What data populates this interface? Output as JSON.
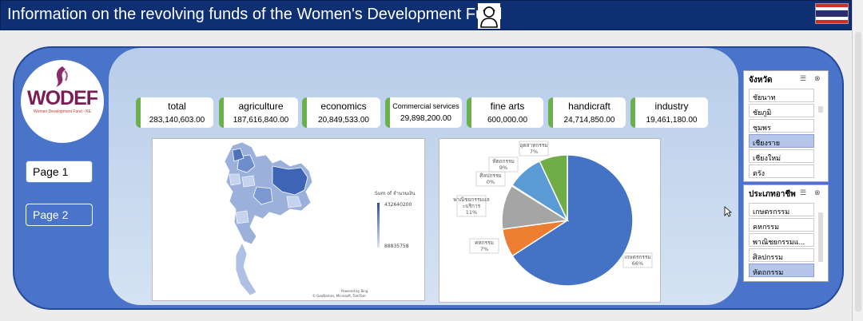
{
  "header": {
    "title": "Information on the revolving funds of the Women's Development Fund"
  },
  "logo": {
    "text": "WODEF",
    "subtitle": "Women Development Fund - KE"
  },
  "nav": {
    "page1": "Page 1",
    "page2": "Page 2"
  },
  "cards": [
    {
      "label": "total",
      "value": "283,140,603.00"
    },
    {
      "label": "agriculture",
      "value": "187,616,840.00"
    },
    {
      "label": "economics",
      "value": "20,849,533.00"
    },
    {
      "label": "Commercial services",
      "value": "29,898,200.00"
    },
    {
      "label": "fine arts",
      "value": "600,000.00"
    },
    {
      "label": "handicraft",
      "value": "24,714,850.00"
    },
    {
      "label": "industry",
      "value": "19,461,180.00"
    }
  ],
  "map": {
    "legend_title": "Sum of จำนวนเงิน",
    "legend_max": "432640200",
    "legend_min": "88835758",
    "powered": "Powered by Bing",
    "credits": "© GeoNames, Microsoft, TomTom"
  },
  "chart_data": {
    "type": "pie",
    "slices": [
      {
        "name": "เกษตรกรรม",
        "label": "66%",
        "value": 66,
        "color": "#4472c4"
      },
      {
        "name": "คหกรรม",
        "label": "7%",
        "value": 7,
        "color": "#ed7d31"
      },
      {
        "name": "พาณิชยกรรมและบริการ",
        "label": "11%",
        "value": 11,
        "color": "#a5a5a5"
      },
      {
        "name": "ศิลปกรรม",
        "label": "0%",
        "value": 0.2,
        "color": "#ffc000"
      },
      {
        "name": "หัตถกรรม",
        "label": "9%",
        "value": 9,
        "color": "#5b9bd5"
      },
      {
        "name": "อุตสาหกรรม",
        "label": "7%",
        "value": 7,
        "color": "#70ad47"
      }
    ]
  },
  "slicer_province": {
    "title": "จังหวัด",
    "items": [
      {
        "label": "ชัยนาท",
        "selected": false
      },
      {
        "label": "ชัยภูมิ",
        "selected": false
      },
      {
        "label": "ชุมพร",
        "selected": false
      },
      {
        "label": "เชียงราย",
        "selected": true
      },
      {
        "label": "เชียงใหม่",
        "selected": false
      },
      {
        "label": "ตรัง",
        "selected": false
      }
    ]
  },
  "slicer_occupation": {
    "title": "ประเภทอาชีพ",
    "items": [
      {
        "label": "เกษตรกรรม",
        "selected": false
      },
      {
        "label": "คหกรรม",
        "selected": false
      },
      {
        "label": "พาณิชยกรรมแ...",
        "selected": false
      },
      {
        "label": "ศิลปกรรม",
        "selected": false
      },
      {
        "label": "หัตถกรรม",
        "selected": true
      }
    ]
  },
  "colors": {
    "header_bg": "#0f2f73",
    "outer_bg": "#4a74c9",
    "card_accent": "#6ab04c",
    "slicer_selected": "#b6c6ea"
  }
}
